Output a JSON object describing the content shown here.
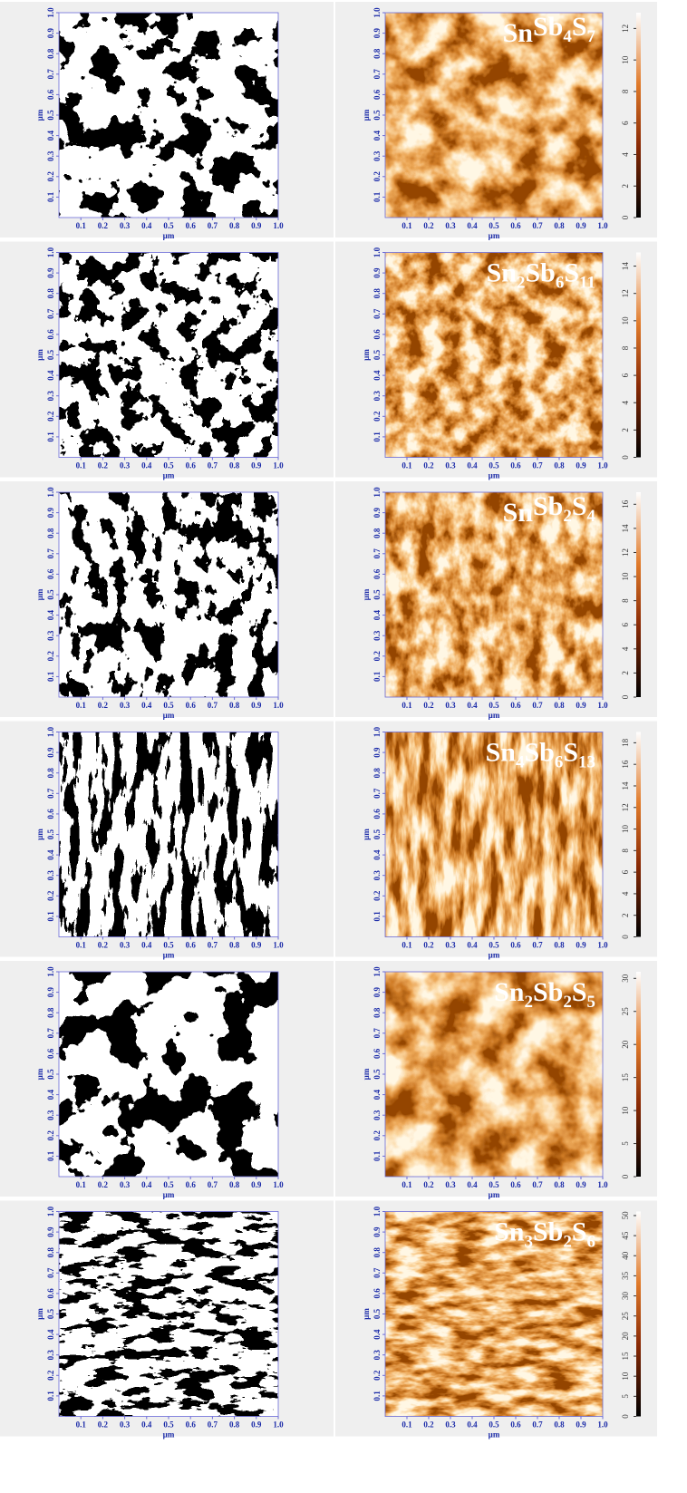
{
  "axes": {
    "label": "µm",
    "ticks": [
      0.1,
      0.2,
      0.3,
      0.4,
      0.5,
      0.6,
      0.7,
      0.8,
      0.9,
      {
        "value": 1,
        "label": "1.0"
      }
    ]
  },
  "panels": [
    {
      "formula": [
        [
          "Sn"
        ],
        [
          "Sb",
          "4"
        ],
        [
          "S",
          "7"
        ]
      ],
      "colorbar": {
        "ylim": [
          0,
          13
        ],
        "yticks": [
          0,
          2,
          4,
          6,
          8,
          10,
          12
        ]
      }
    },
    {
      "formula": [
        [
          "Sn",
          "2"
        ],
        [
          "Sb",
          "6"
        ],
        [
          "S",
          "11"
        ]
      ],
      "colorbar": {
        "ylim": [
          0,
          15
        ],
        "yticks": [
          0,
          2,
          4,
          6,
          8,
          10,
          12,
          14
        ]
      }
    },
    {
      "formula": [
        [
          "Sn"
        ],
        [
          "Sb",
          "2"
        ],
        [
          "S",
          "4"
        ]
      ],
      "colorbar": {
        "ylim": [
          0,
          17
        ],
        "yticks": [
          0,
          2,
          4,
          6,
          8,
          10,
          12,
          14,
          16
        ]
      }
    },
    {
      "formula": [
        [
          "Sn",
          "4"
        ],
        [
          "Sb",
          "6"
        ],
        [
          "S",
          "13"
        ]
      ],
      "colorbar": {
        "ylim": [
          0,
          19
        ],
        "yticks": [
          0,
          2,
          4,
          6,
          8,
          10,
          12,
          14,
          16,
          18
        ]
      }
    },
    {
      "formula": [
        [
          "Sn",
          "2"
        ],
        [
          "Sb",
          "2"
        ],
        [
          "S",
          "5"
        ]
      ],
      "colorbar": {
        "ylim": [
          0,
          31
        ],
        "yticks": [
          0,
          5,
          10,
          15,
          20,
          25,
          30
        ]
      }
    },
    {
      "formula": [
        [
          "Sn",
          "3"
        ],
        [
          "Sb",
          "2"
        ],
        [
          "S",
          "6"
        ]
      ],
      "colorbar": {
        "ylim": [
          0,
          51
        ],
        "yticks": [
          0,
          5,
          10,
          15,
          20,
          25,
          30,
          35,
          40,
          45,
          50
        ]
      }
    }
  ]
}
